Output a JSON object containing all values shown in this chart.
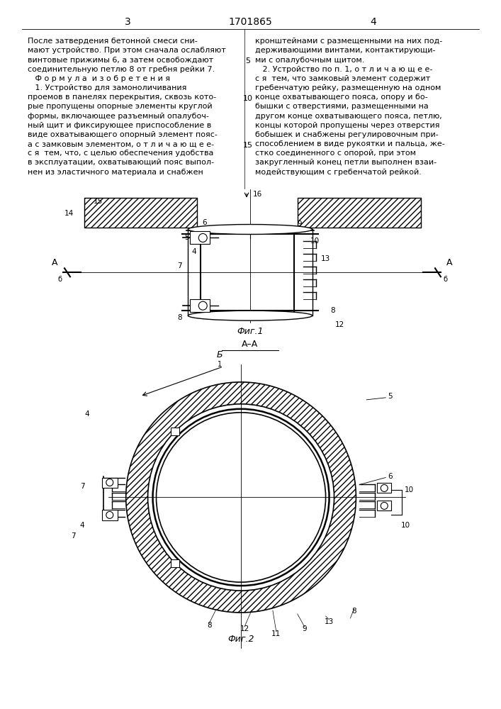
{
  "bg_color": "#ffffff",
  "page_width": 7.07,
  "page_height": 10.0,
  "header": {
    "page_left": "3",
    "title_center": "1701865",
    "page_right": "4"
  },
  "left_text": [
    "После затвердения бетонной смеси сни-",
    "мают устройство. При этом сначала ослабляют",
    "винтовые прижимы 6, а затем освобождают",
    "соединительную петлю 8 от гребня рейки 7.",
    "   Ф о р м у л а  и з о б р е т е н и я",
    "   1. Устройство для замоноличивания",
    "проемов в панелях перекрытия, сквозь кото-",
    "рые пропущены опорные элементы круглой",
    "формы, включающее разъемный опалубоч-",
    "ный щит и фиксирующее приспособление в",
    "виде охватывающего опорный элемент пояс-",
    "а с замковым элементом, о т л и ч а ю щ е е-",
    "с я  тем, что, с целью обеспечения удобства",
    "в эксплуатации, охватывающий пояс выпол-",
    "нен из эластичного материала и снабжен"
  ],
  "right_text": [
    "кронштейнами с размещенными на них под-",
    "держивающими винтами, контактирующи-",
    "ми с опалубочным щитом.",
    "   2. Устройство по п. 1, о т л и ч а ю щ е е-",
    "с я  тем, что замковый элемент содержит",
    "гребенчатую рейку, размещенную на одном",
    "конце охватывающего пояса, опору и бо-",
    "бышки с отверстиями, размещенными на",
    "другом конце охватывающего пояса, петлю,",
    "концы которой пропущены через отверстия",
    "бобышек и снабжены регулировочным при-",
    "способлением в виде рукоятки и пальца, же-",
    "стко соединенного с опорой, при этом",
    "закругленный конец петли выполнен взаи-",
    "модействующим с гребенчатой рейкой."
  ],
  "line_num_indices": [
    2,
    6,
    11
  ],
  "line_num_values": [
    "5",
    "10",
    "15"
  ],
  "fig1_caption": "Фиг.1",
  "fig2_caption": "Фиг.2",
  "section_label": "А–А"
}
